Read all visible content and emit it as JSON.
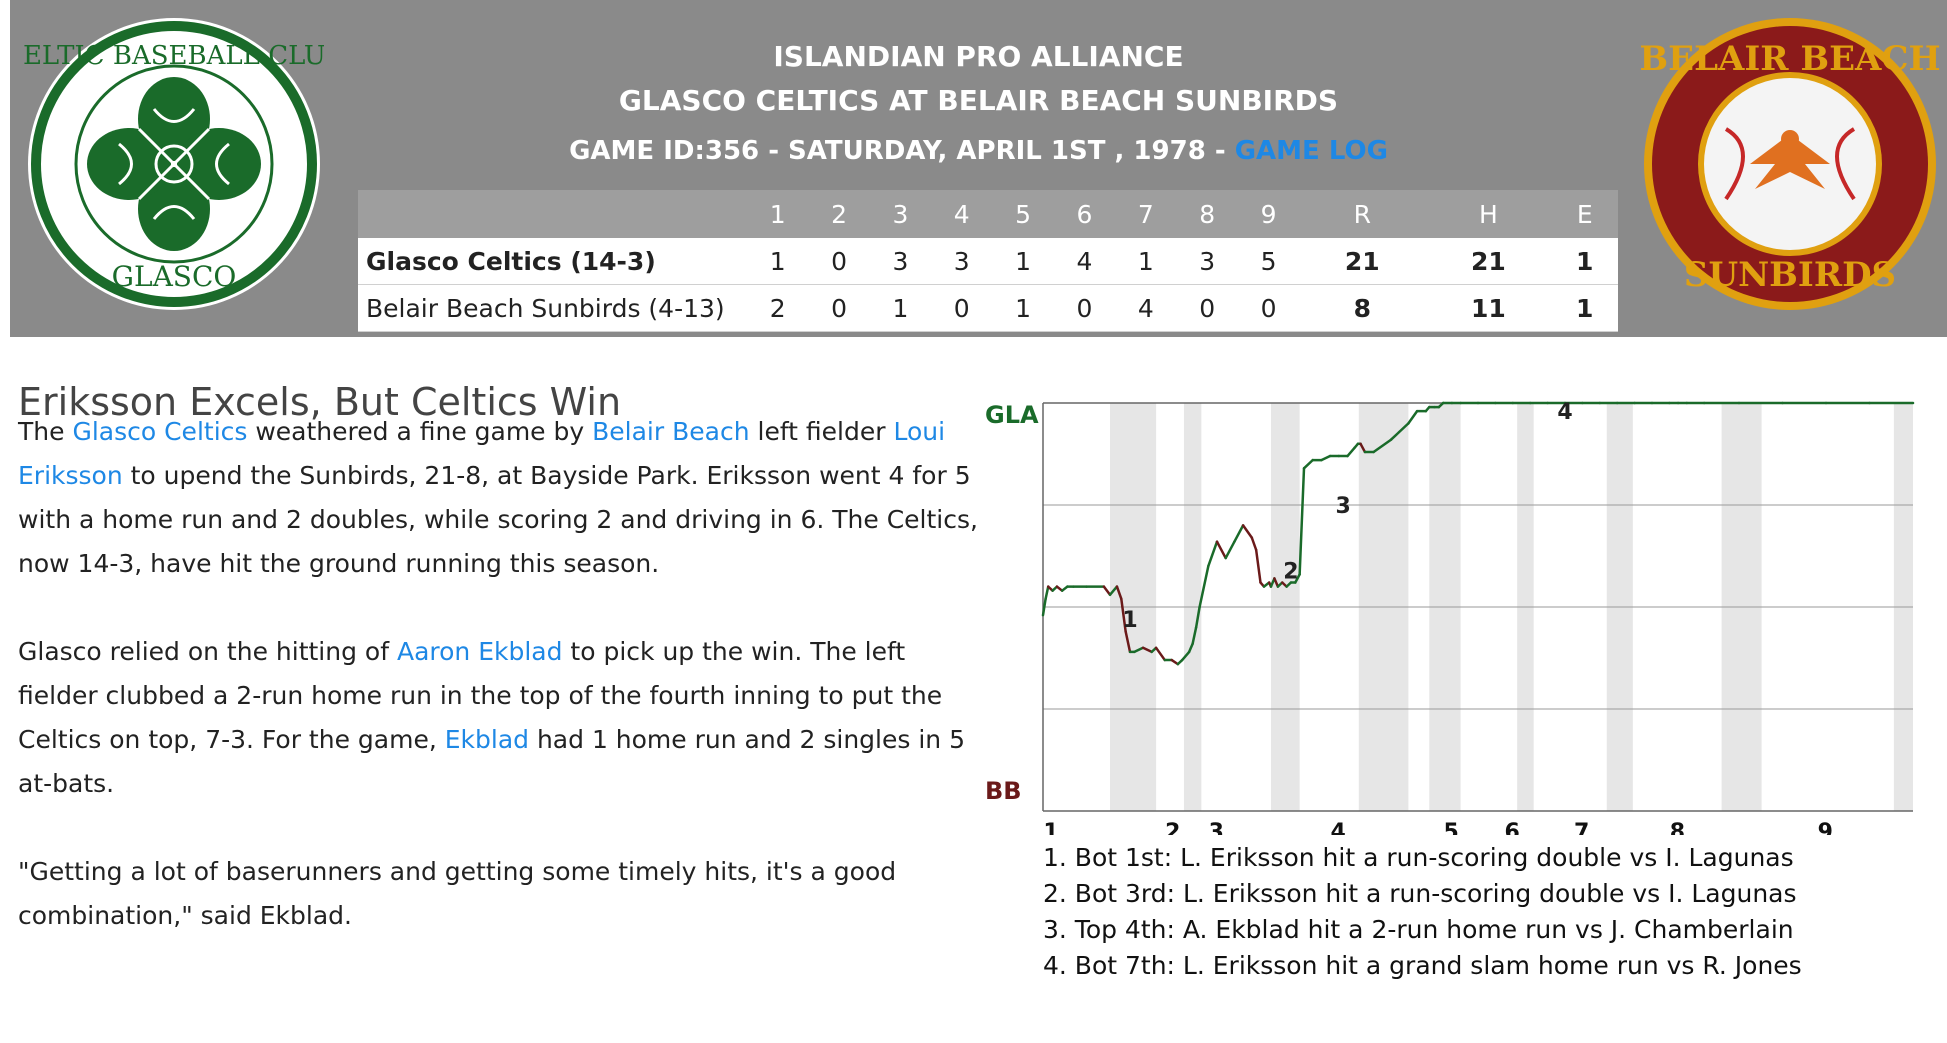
{
  "header": {
    "league": "ISLANDIAN PRO ALLIANCE",
    "matchup": "GLASCO CELTICS AT BELAIR BEACH SUNBIRDS",
    "game_info": "GAME ID:356 - SATURDAY, APRIL 1ST , 1978 - ",
    "game_log_link": "GAME LOG",
    "home_logo_text": "CELTIC BASEBALL CLUB GLASCO",
    "away_logo_text": "BELAIR BEACH SUNBIRDS"
  },
  "linescore": {
    "columns": [
      "1",
      "2",
      "3",
      "4",
      "5",
      "6",
      "7",
      "8",
      "9",
      "R",
      "H",
      "E"
    ],
    "rows": [
      {
        "team": "Glasco Celtics (14-3)",
        "innings": [
          "1",
          "0",
          "3",
          "3",
          "1",
          "4",
          "1",
          "3",
          "5"
        ],
        "R": "21",
        "H": "21",
        "E": "1"
      },
      {
        "team": "Belair Beach Sunbirds (4-13)",
        "innings": [
          "2",
          "0",
          "1",
          "0",
          "1",
          "0",
          "4",
          "0",
          "0"
        ],
        "R": "8",
        "H": "11",
        "E": "1"
      }
    ]
  },
  "article": {
    "headline": "Eriksson Excels, But Celtics Win",
    "p1": {
      "t1": "The ",
      "l1": "Glasco Celtics",
      "t2": " weathered a fine game by ",
      "l2": "Belair Beach",
      "t3": " left fielder ",
      "l3": "Loui Eriksson",
      "t4": " to upend the Sunbirds, 21-8, at Bayside Park. Eriksson went 4 for 5 with a home run and 2 doubles, while scoring 2 and driving in 6. The Celtics, now 14-3, have hit the ground running this season."
    },
    "p2": {
      "t1": "Glasco relied on the hitting of ",
      "l1": "Aaron Ekblad",
      "t2": " to pick up the win. The left fielder clubbed a 2-run home run in the top of the fourth inning to put the Celtics on top, 7-3. For the game, ",
      "l2": "Ekblad",
      "t3": " had 1 home run and 2 singles in 5 at-bats."
    },
    "p3": "\"Getting a lot of baserunners and getting some timely hits, it's a good combination,\" said Ekblad."
  },
  "colors": {
    "header_bg": "#8a8a8a",
    "link": "#1e88e5",
    "gla_line": "#1a6b2a",
    "bb_line": "#6b1a1a",
    "inning_band": "#e6e6e6"
  },
  "chart_data": {
    "type": "line",
    "title": "",
    "top_label": "GLA",
    "bottom_label": "BB",
    "ylim": [
      0,
      1
    ],
    "inning_labels": [
      "1",
      "2",
      "3",
      "4",
      "5",
      "6",
      "7",
      "8",
      "9"
    ],
    "inning_positions": [
      0.0,
      0.14,
      0.19,
      0.33,
      0.46,
      0.53,
      0.61,
      0.72,
      0.89
    ],
    "shaded_bands": [
      [
        0.077,
        0.13
      ],
      [
        0.162,
        0.182
      ],
      [
        0.262,
        0.295
      ],
      [
        0.363,
        0.42
      ],
      [
        0.444,
        0.48
      ],
      [
        0.545,
        0.564
      ],
      [
        0.648,
        0.678
      ],
      [
        0.78,
        0.826
      ],
      [
        0.978,
        1.0
      ]
    ],
    "series": [
      {
        "x": [
          0.0,
          0.003,
          0.006,
          0.011,
          0.016,
          0.022,
          0.028,
          0.035,
          0.05,
          0.07,
          0.077,
          0.085,
          0.09,
          0.095,
          0.1,
          0.105,
          0.115,
          0.125,
          0.13,
          0.14,
          0.148,
          0.155,
          0.16,
          0.168,
          0.172,
          0.176,
          0.18,
          0.19,
          0.2,
          0.21,
          0.22,
          0.23,
          0.24,
          0.245,
          0.25,
          0.254,
          0.26,
          0.262,
          0.266,
          0.27,
          0.275,
          0.28,
          0.285,
          0.29,
          0.295,
          0.3,
          0.31,
          0.32,
          0.33,
          0.34,
          0.35,
          0.358,
          0.362,
          0.365,
          0.37,
          0.38,
          0.4,
          0.42,
          0.43,
          0.44,
          0.444,
          0.45,
          0.455,
          0.46,
          0.47,
          0.48,
          0.5,
          0.52,
          0.54,
          0.56,
          0.58,
          0.6,
          0.62,
          0.64,
          0.66,
          0.68,
          0.7,
          0.72,
          0.73,
          0.74,
          0.76,
          0.8,
          0.85,
          0.9,
          0.95,
          1.0
        ],
        "y": [
          0.48,
          0.52,
          0.55,
          0.54,
          0.55,
          0.54,
          0.55,
          0.55,
          0.55,
          0.55,
          0.53,
          0.55,
          0.52,
          0.44,
          0.39,
          0.39,
          0.4,
          0.39,
          0.4,
          0.37,
          0.37,
          0.36,
          0.37,
          0.39,
          0.41,
          0.45,
          0.5,
          0.6,
          0.66,
          0.62,
          0.66,
          0.7,
          0.67,
          0.64,
          0.56,
          0.55,
          0.56,
          0.55,
          0.57,
          0.55,
          0.56,
          0.55,
          0.56,
          0.56,
          0.58,
          0.84,
          0.86,
          0.86,
          0.87,
          0.87,
          0.87,
          0.89,
          0.9,
          0.9,
          0.88,
          0.88,
          0.91,
          0.95,
          0.98,
          0.98,
          0.99,
          0.99,
          0.99,
          1.0,
          1.0,
          1.0,
          1.0,
          1.0,
          1.0,
          1.0,
          1.0,
          1.0,
          1.0,
          1.0,
          1.0,
          1.0,
          1.0,
          1.0,
          1.0,
          1.0,
          1.0,
          1.0,
          1.0,
          1.0,
          1.0,
          1.0
        ]
      }
    ],
    "annotations": [
      {
        "label": "1",
        "x": 0.1,
        "y": 0.47
      },
      {
        "label": "2",
        "x": 0.285,
        "y": 0.59
      },
      {
        "label": "3",
        "x": 0.345,
        "y": 0.75
      },
      {
        "label": "4",
        "x": 0.6,
        "y": 0.98
      }
    ],
    "notes": [
      "1. Bot 1st: L. Eriksson hit a run-scoring double vs I. Lagunas",
      "2. Bot 3rd: L. Eriksson hit a run-scoring double vs I. Lagunas",
      "3. Top 4th: A. Ekblad hit a 2-run home run vs J. Chamberlain",
      "4. Bot 7th: L. Eriksson hit a grand slam home run vs R. Jones"
    ]
  }
}
